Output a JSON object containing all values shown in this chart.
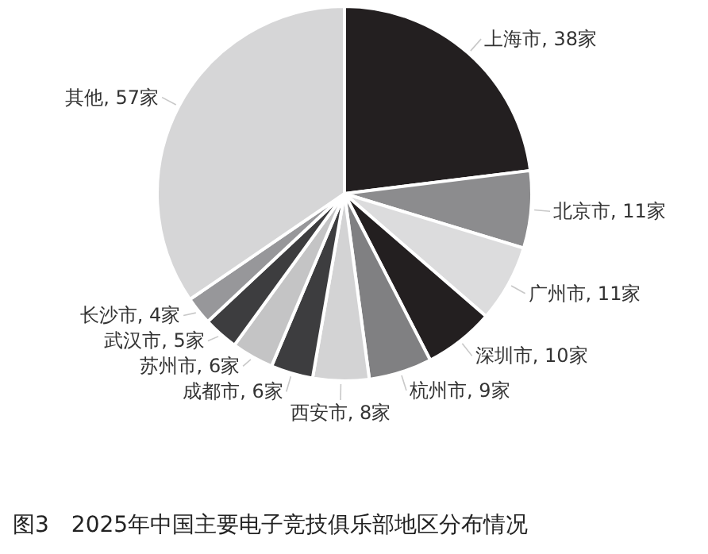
{
  "chart_data": {
    "type": "pie",
    "title": "图3　2025年中国主要电子竞技俱乐部地区分布情况",
    "categories": [
      "上海市",
      "北京市",
      "广州市",
      "深圳市",
      "杭州市",
      "西安市",
      "成都市",
      "苏州市",
      "武汉市",
      "长沙市",
      "其他"
    ],
    "values": [
      38,
      11,
      11,
      10,
      9,
      8,
      6,
      6,
      5,
      4,
      57
    ],
    "colors": [
      "#231f20",
      "#8c8c8e",
      "#dcdcdd",
      "#231f20",
      "#808082",
      "#d3d3d4",
      "#3d3d3f",
      "#c4c4c5",
      "#3d3d3f",
      "#97979a",
      "#d6d6d7"
    ],
    "value_labels": [
      ", 38家",
      ", 11家",
      ", 11家",
      ", 10家",
      ", 9家",
      ", 8家",
      ", 6家",
      ", 6家",
      ", 5家",
      ", 4家",
      ", 57家"
    ]
  }
}
